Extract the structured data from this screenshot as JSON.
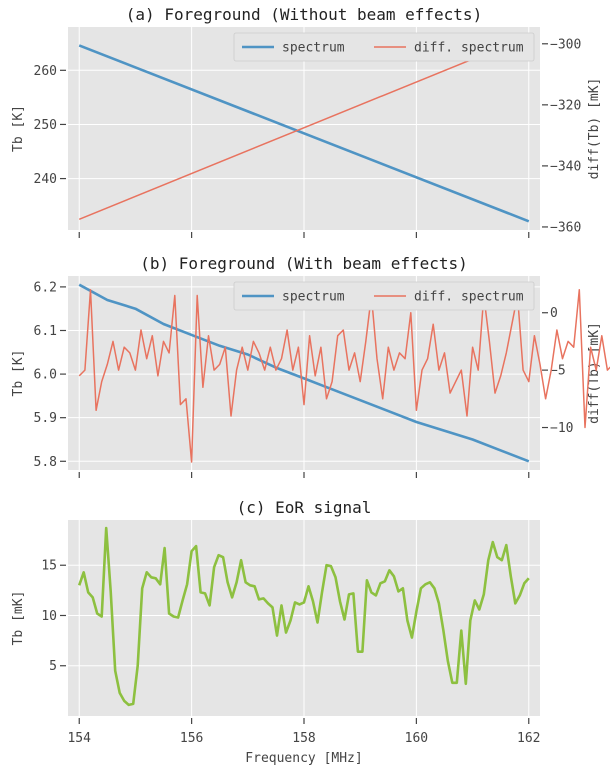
{
  "chart_data": [
    {
      "type": "line",
      "title": "(a) Foreground (Without beam effects)",
      "ylabel": "Tb [K]",
      "y2label": "diff(Tb) [mK]",
      "xlim": [
        153.8,
        162.2
      ],
      "ylim": [
        230.5,
        268
      ],
      "y2lim": [
        -361,
        -294.5
      ],
      "yticks": [
        240,
        250,
        260
      ],
      "y2ticks": [
        -360,
        -340,
        -320,
        -300
      ],
      "legend_position": "top-right",
      "series": [
        {
          "name": "spectrum",
          "axis": "left",
          "color": "#4f94c4",
          "x": [
            154,
            162
          ],
          "values": [
            264.6,
            232.1
          ]
        },
        {
          "name": "diff. spectrum",
          "axis": "right",
          "color": "#e8735f",
          "x": [
            154,
            162
          ],
          "values": [
            -357.5,
            -297.5
          ]
        }
      ]
    },
    {
      "type": "line",
      "title": "(b) Foreground (With beam effects)",
      "ylabel": "Tb [K]",
      "y2label": "diff(Tb) [mK]",
      "xlim": [
        153.8,
        162.2
      ],
      "ylim": [
        5.78,
        6.225
      ],
      "y2lim": [
        -13.7,
        3.2
      ],
      "yticks": [
        5.8,
        5.9,
        6.0,
        6.1,
        6.2
      ],
      "y2ticks": [
        -10,
        -5,
        0
      ],
      "legend_position": "top-right",
      "series": [
        {
          "name": "spectrum",
          "axis": "left",
          "color": "#4f94c4",
          "x": [
            154,
            154.5,
            155,
            155.5,
            156,
            156.5,
            157,
            157.5,
            158,
            158.5,
            159,
            159.5,
            160,
            160.5,
            161,
            161.5,
            162
          ],
          "values": [
            6.205,
            6.17,
            6.15,
            6.115,
            6.09,
            6.065,
            6.045,
            6.015,
            5.99,
            5.965,
            5.94,
            5.915,
            5.89,
            5.87,
            5.85,
            5.825,
            5.8
          ]
        },
        {
          "name": "diff. spectrum",
          "axis": "right",
          "color": "#e8735f",
          "x_start": 154,
          "x_step": 0.1,
          "values": [
            -5.5,
            -5,
            2,
            -8.5,
            -6,
            -4.5,
            -2.5,
            -5,
            -3,
            -3.5,
            -5,
            -1.5,
            -4,
            -2,
            -5.5,
            -2.5,
            -3.5,
            1.5,
            -8,
            -7.5,
            -13,
            1.5,
            -6.5,
            -2,
            -5,
            -4.5,
            -3,
            -9,
            -5,
            -3,
            -5,
            -2.5,
            -3.5,
            -5,
            -3,
            -5,
            -4,
            -1.5,
            -5,
            -3,
            -8,
            -2,
            -5.5,
            -3,
            -7.5,
            -6,
            -2,
            -1.5,
            -5,
            -3.5,
            -6,
            -2.5,
            1.5,
            -4,
            -7.5,
            -3,
            -5,
            -3.5,
            -4,
            0,
            -8.5,
            -5,
            -4,
            -1,
            -5,
            -3.5,
            -7,
            -6,
            -5,
            -9,
            -3,
            -5,
            1.5,
            -2.5,
            -7,
            -5.5,
            -3.5,
            -1,
            1.5,
            -5,
            -6,
            -2,
            -4.5,
            -7.5,
            -5,
            -1.5,
            -4,
            -2.5,
            -3,
            2,
            -10,
            -3,
            -5,
            -2,
            -5,
            -4.5,
            -3,
            -5,
            -2,
            -5.5
          ]
        }
      ]
    },
    {
      "type": "line",
      "title": "(c) EoR signal",
      "xlabel": "Frequency [MHz]",
      "ylabel": "Tb [mK]",
      "xlim": [
        153.8,
        162.2
      ],
      "ylim": [
        0,
        19.5
      ],
      "xticks": [
        154,
        156,
        158,
        160,
        162
      ],
      "yticks": [
        5,
        10,
        15
      ],
      "series": [
        {
          "name": "",
          "axis": "left",
          "color": "#8dc040",
          "x_start": 154,
          "x_step": 0.08,
          "values": [
            13,
            14.3,
            12.3,
            11.8,
            10.2,
            9.9,
            18.7,
            12.4,
            4.5,
            2.3,
            1.5,
            1.1,
            1.2,
            5,
            12.7,
            14.3,
            13.8,
            13.7,
            13.1,
            16.7,
            10.2,
            9.9,
            9.8,
            11.5,
            13.1,
            16.4,
            16.9,
            12.3,
            12.2,
            11,
            14.8,
            16,
            15.8,
            13.3,
            11.8,
            13.3,
            15.5,
            13.3,
            13,
            12.9,
            11.6,
            11.7,
            11.2,
            10.8,
            8,
            11,
            8.3,
            9.5,
            11.3,
            11.1,
            11.3,
            12.9,
            11.4,
            9.3,
            12.3,
            15,
            14.9,
            13.8,
            11.4,
            9.6,
            12.1,
            12.2,
            6.4,
            6.4,
            13.5,
            12.3,
            12,
            13.2,
            13.4,
            14.5,
            13.9,
            12.4,
            12.7,
            9.5,
            7.8,
            10.4,
            12.7,
            13.1,
            13.3,
            12.7,
            11.2,
            8.5,
            5.5,
            3.3,
            3.3,
            8.5,
            3.2,
            9.5,
            11.5,
            10.6,
            12.1,
            15.5,
            17.3,
            15.8,
            15.5,
            17,
            13.9,
            11.2,
            12,
            13.2,
            13.7
          ]
        }
      ]
    }
  ]
}
